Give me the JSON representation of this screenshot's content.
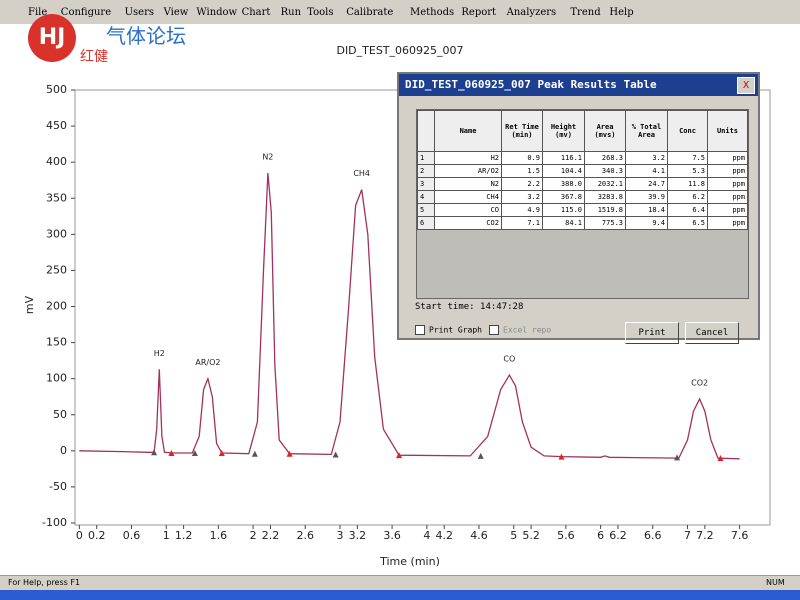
{
  "menu": [
    "File",
    "Configure",
    "Users",
    "View",
    "Window",
    "Chart",
    "Run",
    "Tools",
    "Calibrate",
    "Methods",
    "Report",
    "Analyzers",
    "Trend",
    "Help"
  ],
  "watermark": {
    "logo": "HJ",
    "title": "气体论坛",
    "subtitle": "红健"
  },
  "chart": {
    "type": "line",
    "title": "DID_TEST_060925_007",
    "x_label": "Time (min)",
    "y_label": "mV",
    "xlim": [
      -0.05,
      7.95
    ],
    "ylim": [
      -100,
      500
    ],
    "xticks": [
      0,
      0.2,
      0.6,
      1,
      1.2,
      1.6,
      2,
      2.2,
      2.6,
      3,
      3.2,
      3.6,
      4,
      4.2,
      4.6,
      5,
      5.2,
      5.6,
      6,
      6.2,
      6.6,
      7,
      7.2,
      7.6
    ],
    "yticks": [
      -100,
      -50,
      0,
      50,
      100,
      150,
      200,
      250,
      300,
      350,
      400,
      450,
      500
    ],
    "trace": {
      "color": "#a3305e",
      "x": [
        0,
        0.5,
        0.8,
        0.86,
        0.89,
        0.92,
        0.95,
        0.98,
        1.06,
        1.3,
        1.38,
        1.43,
        1.48,
        1.53,
        1.58,
        1.64,
        1.95,
        2.05,
        2.12,
        2.17,
        2.21,
        2.25,
        2.3,
        2.42,
        2.9,
        3.0,
        3.1,
        3.18,
        3.25,
        3.32,
        3.4,
        3.5,
        3.68,
        4.5,
        4.7,
        4.85,
        4.95,
        5.02,
        5.1,
        5.2,
        5.35,
        5.55,
        6.0,
        6.05,
        6.1,
        6.9,
        7.0,
        7.07,
        7.14,
        7.2,
        7.27,
        7.35,
        7.6
      ],
      "y": [
        0,
        -1,
        -2,
        -2,
        30,
        113,
        20,
        -2,
        -3,
        -3,
        20,
        85,
        100,
        75,
        10,
        -3,
        -4,
        40,
        250,
        385,
        330,
        120,
        15,
        -4,
        -5,
        40,
        200,
        340,
        362,
        300,
        130,
        30,
        -6,
        -7,
        20,
        85,
        105,
        90,
        40,
        5,
        -7,
        -8,
        -9,
        -7,
        -9,
        -10,
        15,
        55,
        72,
        55,
        15,
        -10,
        -11
      ]
    },
    "peak_start": {
      "color": "#555555",
      "x": [
        0.86,
        1.33,
        2.02,
        2.95,
        4.62,
        6.88
      ],
      "y": [
        -2,
        -3,
        -4,
        -5,
        -7,
        -9
      ]
    },
    "peak_end": {
      "color": "#e0202a",
      "x": [
        1.06,
        1.64,
        2.42,
        3.68,
        5.55,
        7.38
      ],
      "y": [
        -3,
        -3,
        -4,
        -6,
        -8,
        -10
      ]
    },
    "peak_labels": [
      "H2",
      "AR/O2",
      "N2",
      "CH4",
      "CO",
      "CO2"
    ]
  },
  "dialog": {
    "title": "DID_TEST_060925_007 Peak Results Table",
    "columns": [
      "Name",
      "Ret Time (min)",
      "Height (mv)",
      "Area (mvs)",
      "% Total Area",
      "Conc",
      "Units"
    ],
    "rows": [
      [
        "1",
        "H2",
        "0.9",
        "116.1",
        "268.3",
        "3.2",
        "7.5",
        "ppm"
      ],
      [
        "2",
        "AR/O2",
        "1.5",
        "104.4",
        "340.3",
        "4.1",
        "5.3",
        "ppm"
      ],
      [
        "3",
        "N2",
        "2.2",
        "388.0",
        "2032.1",
        "24.7",
        "11.8",
        "ppm"
      ],
      [
        "4",
        "CH4",
        "3.2",
        "367.8",
        "3283.8",
        "39.9",
        "6.2",
        "ppm"
      ],
      [
        "5",
        "CO",
        "4.9",
        "115.0",
        "1519.8",
        "18.4",
        "6.4",
        "ppm"
      ],
      [
        "6",
        "CO2",
        "7.1",
        "84.1",
        "775.3",
        "9.4",
        "6.5",
        "ppm"
      ]
    ],
    "start_time": "Start time: 14:47:28",
    "print_graph": "Print Graph",
    "excel": "Excel repo",
    "print": "Print",
    "cancel": "Cancel",
    "close": "X"
  },
  "status": {
    "help": "For Help, press F1",
    "num": "NUM"
  }
}
